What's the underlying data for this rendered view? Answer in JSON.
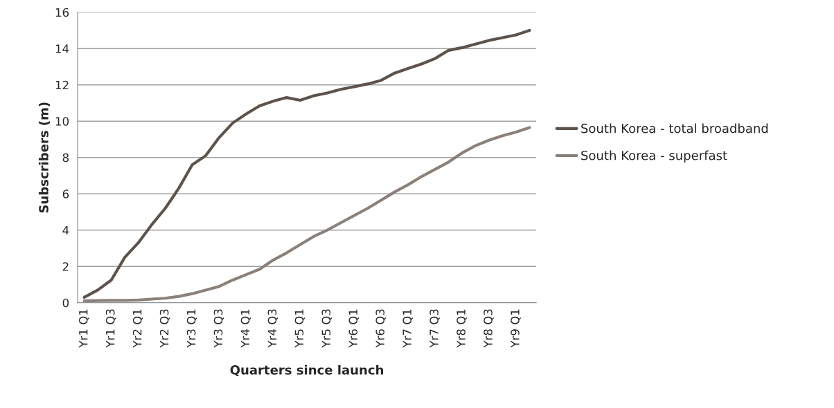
{
  "chart_data": {
    "type": "line",
    "xlabel": "Quarters since launch",
    "ylabel": "Subscribers (m)",
    "categories": [
      "Yr1 Q1",
      null,
      "Yr1 Q3",
      null,
      "Yr2 Q1",
      null,
      "Yr2 Q3",
      null,
      "Yr3 Q1",
      null,
      "Yr3 Q3",
      null,
      "Yr4 Q1",
      null,
      "Yr4 Q3",
      null,
      "Yr5 Q1",
      null,
      "Yr5 Q3",
      null,
      "Yr6 Q1",
      null,
      "Yr6 Q3",
      null,
      "Yr7 Q1",
      null,
      "Yr7 Q3",
      null,
      "Yr8 Q1",
      null,
      "Yr8 Q3",
      null,
      "Yr9 Q1",
      null
    ],
    "series": [
      {
        "name": "South Korea - total broadband",
        "color": "#5e534c",
        "values": [
          0.3,
          0.7,
          1.25,
          2.5,
          3.3,
          4.3,
          5.2,
          6.3,
          7.6,
          8.1,
          9.1,
          9.9,
          10.4,
          10.85,
          11.1,
          11.3,
          11.15,
          11.4,
          11.55,
          11.75,
          11.9,
          12.05,
          12.25,
          12.65,
          12.9,
          13.15,
          13.45,
          13.9,
          14.05,
          14.25,
          14.45,
          14.6,
          14.75,
          15.0
        ]
      },
      {
        "name": "South Korea - superfast",
        "color": "#8b817a",
        "values": [
          0.1,
          0.12,
          0.13,
          0.13,
          0.15,
          0.2,
          0.25,
          0.35,
          0.5,
          0.7,
          0.9,
          1.25,
          1.55,
          1.85,
          2.35,
          2.75,
          3.2,
          3.65,
          4.0,
          4.4,
          4.8,
          5.2,
          5.65,
          6.1,
          6.5,
          6.95,
          7.35,
          7.75,
          8.25,
          8.65,
          8.95,
          9.2,
          9.4,
          9.65
        ]
      }
    ],
    "ylim": [
      0,
      16
    ],
    "yticks": [
      0,
      2,
      4,
      6,
      8,
      10,
      12,
      14,
      16
    ],
    "grid": "y",
    "legend": "right",
    "marker": "none",
    "line_style": "solid"
  }
}
